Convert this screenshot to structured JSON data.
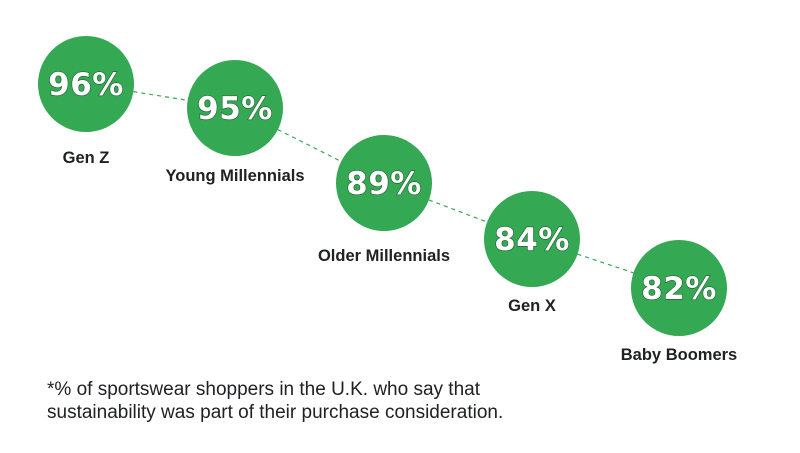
{
  "chart_data": {
    "type": "scatter",
    "categories": [
      "Gen Z",
      "Young Millennials",
      "Older Millennials",
      "Gen X",
      "Baby Boomers"
    ],
    "values": [
      96,
      95,
      89,
      84,
      82
    ],
    "value_labels": [
      "96%",
      "95%",
      "89%",
      "84%",
      "82%"
    ],
    "unit": "%",
    "marker_color": "#34a853",
    "connector": "dashed",
    "connector_color": "#34a853",
    "grid": false
  },
  "footnote": {
    "line1": "*% of sportswear shoppers in the U.K. who say that",
    "line2": "sustainability was part of their purchase consideration."
  }
}
